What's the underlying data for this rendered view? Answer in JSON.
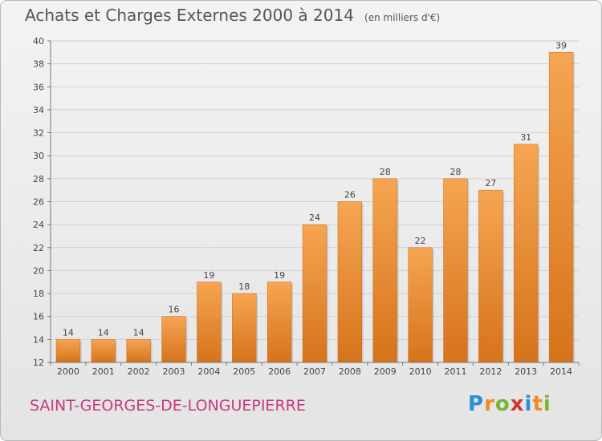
{
  "title": "Achats et Charges Externes 2000 à 2014",
  "subtitle": "(en milliers d'€)",
  "town": "SAINT-GEORGES-DE-LONGUEPIERRE",
  "logo": {
    "letters": [
      "P",
      "r",
      "o",
      "x",
      "i",
      "t",
      "i"
    ]
  },
  "colors": {
    "bar_light": "#f6a552",
    "bar_dark": "#d6731b",
    "grid": "#cfcfcf",
    "text": "#444444",
    "town": "#c73a7d"
  },
  "chart_data": {
    "type": "bar",
    "categories": [
      "2000",
      "2001",
      "2002",
      "2003",
      "2004",
      "2005",
      "2006",
      "2007",
      "2008",
      "2009",
      "2010",
      "2011",
      "2012",
      "2013",
      "2014"
    ],
    "values": [
      14,
      14,
      14,
      16,
      19,
      18,
      19,
      24,
      26,
      28,
      22,
      28,
      27,
      31,
      39
    ],
    "ylim": [
      12,
      40
    ],
    "yticks": [
      12,
      14,
      16,
      18,
      20,
      22,
      24,
      26,
      28,
      30,
      32,
      34,
      36,
      38,
      40
    ],
    "grid": true,
    "title": "Achats et Charges Externes 2000 à 2014",
    "xlabel": "",
    "ylabel": ""
  }
}
